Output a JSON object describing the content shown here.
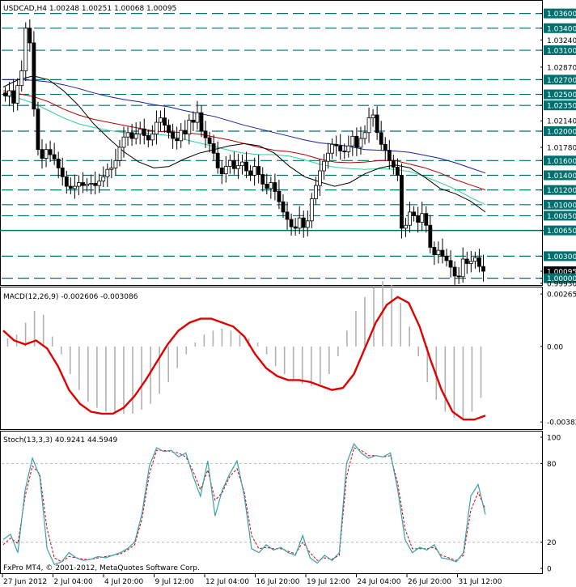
{
  "chart_data": [
    {
      "type": "candlestick",
      "title": "USDCAD,H4  1.00248 1.00251 1.00068 1.00095",
      "x_tick_labels": [
        "27 Jun 2012",
        "2 Jul 04:00",
        "4 Jul 20:00",
        "9 Jul 12:00",
        "12 Jul 04:00",
        "16 Jul 20:00",
        "19 Jul 12:00",
        "24 Jul 04:00",
        "26 Jul 20:00",
        "31 Jul 12:00"
      ],
      "y_ticks": [
        "1.03600",
        "1.03400",
        "1.03240",
        "1.03100",
        "1.02870",
        "1.02700",
        "1.02500",
        "1.02350",
        "1.02140",
        "1.02000",
        "1.01780",
        "1.01600",
        "1.01400",
        "1.01200",
        "1.01000",
        "1.00850",
        "1.00650",
        "1.00300",
        "1.00095",
        "1.00000",
        "0.99930"
      ],
      "y_tick_values": [
        1.036,
        1.034,
        1.0324,
        1.031,
        1.0287,
        1.027,
        1.025,
        1.0235,
        1.0214,
        1.02,
        1.0178,
        1.016,
        1.014,
        1.012,
        1.01,
        1.0085,
        1.0065,
        1.003,
        1.00095,
        1.0,
        0.9993
      ],
      "highlighted_ticks": [
        "1.03600",
        "1.03400",
        "1.03100",
        "1.02700",
        "1.02500",
        "1.02350",
        "1.02000",
        "1.01600",
        "1.01400",
        "1.01200",
        "1.01000",
        "1.00850",
        "1.00650",
        "1.00300",
        "1.00000"
      ],
      "ylim": [
        0.9993,
        1.0375
      ],
      "horizontal_levels": [
        1.036,
        1.034,
        1.031,
        1.027,
        1.025,
        1.0235,
        1.02,
        1.016,
        1.014,
        1.012,
        1.01,
        1.0085,
        1.003,
        1.0
      ],
      "solid_level": 1.0065,
      "current_price_label": "1.00095",
      "candles_close": [
        1.0248,
        1.0255,
        1.0238,
        1.0262,
        1.0282,
        1.034,
        1.032,
        1.023,
        1.0175,
        1.0163,
        1.0175,
        1.0168,
        1.0162,
        1.015,
        1.0138,
        1.0125,
        1.0122,
        1.0125,
        1.013,
        1.0126,
        1.0128,
        1.0129,
        1.0126,
        1.0132,
        1.0138,
        1.0148,
        1.015,
        1.016,
        1.0178,
        1.0192,
        1.0198,
        1.019,
        1.0196,
        1.0203,
        1.0194,
        1.0188,
        1.0196,
        1.0212,
        1.0218,
        1.0208,
        1.0198,
        1.019,
        1.0187,
        1.0201,
        1.0196,
        1.0215,
        1.0212,
        1.0225,
        1.02,
        1.0191,
        1.0183,
        1.017,
        1.015,
        1.0142,
        1.0152,
        1.016,
        1.0149,
        1.0153,
        1.0158,
        1.0146,
        1.014,
        1.0152,
        1.0141,
        1.0128,
        1.0122,
        1.013,
        1.0118,
        1.0104,
        1.009,
        1.008,
        1.007,
        1.0068,
        1.0082,
        1.0069,
        1.0078,
        1.0108,
        1.0126,
        1.0146,
        1.0159,
        1.017,
        1.0182,
        1.018,
        1.0173,
        1.0172,
        1.018,
        1.0193,
        1.0178,
        1.019,
        1.0198,
        1.0218,
        1.0222,
        1.0198,
        1.0182,
        1.0174,
        1.016,
        1.0151,
        1.014,
        1.0068,
        1.0072,
        1.009,
        1.0085,
        1.0076,
        1.0088,
        1.0072,
        1.0042,
        1.0032,
        1.0038,
        1.003,
        1.0024,
        1.0015,
        1.0003,
        1.0002,
        1.0026,
        1.002,
        1.0023,
        1.0028,
        1.0016,
        1.00095
      ],
      "ma_black": [
        1.026,
        1.027,
        1.0275,
        1.027,
        1.0255,
        1.0235,
        1.021,
        1.019,
        1.0172,
        1.0158,
        1.015,
        1.0152,
        1.0162,
        1.017,
        1.0175,
        1.018,
        1.0183,
        1.018,
        1.017,
        1.0152,
        1.0138,
        1.0131,
        1.0125,
        1.013,
        1.0142,
        1.015,
        1.0154,
        1.015,
        1.0137,
        1.0122,
        1.0115,
        1.0105,
        1.009
      ],
      "ma_red": [
        1.0255,
        1.0251,
        1.0247,
        1.024,
        1.023,
        1.0222,
        1.0216,
        1.0212,
        1.0208,
        1.0204,
        1.02,
        1.0199,
        1.0198,
        1.0196,
        1.0192,
        1.0188,
        1.0183,
        1.0178,
        1.0174,
        1.0172,
        1.0168,
        1.0162,
        1.0158,
        1.0157,
        1.0158,
        1.016,
        1.016,
        1.0155,
        1.015,
        1.0143,
        1.0134,
        1.0127,
        1.012
      ],
      "ma_green": [
        1.0248,
        1.0245,
        1.0238,
        1.0228,
        1.0218,
        1.021,
        1.0205,
        1.0201,
        1.0198,
        1.0197,
        1.0196,
        1.0194,
        1.0189,
        1.0184,
        1.0179,
        1.0174,
        1.017,
        1.0168,
        1.0168,
        1.0166,
        1.0161,
        1.0155,
        1.0151,
        1.0149,
        1.0148,
        1.0149,
        1.0148,
        1.0145,
        1.0138,
        1.013,
        1.0121,
        1.011,
        1.01
      ],
      "ma_blue": [
        1.027,
        1.027,
        1.0269,
        1.0267,
        1.0263,
        1.0258,
        1.0252,
        1.0247,
        1.0243,
        1.024,
        1.0236,
        1.0233,
        1.0228,
        1.0224,
        1.022,
        1.0214,
        1.0208,
        1.0203,
        1.0198,
        1.0193,
        1.0188,
        1.0184,
        1.0182,
        1.0179,
        1.0175,
        1.0174,
        1.0173,
        1.0171,
        1.0167,
        1.0163,
        1.0157,
        1.015,
        1.0143
      ]
    },
    {
      "type": "macd",
      "title": "MACD(12,26,9) -0.002606 -0.003086",
      "y_ticks": [
        "0.00265",
        "0.00",
        "-0.00382"
      ],
      "y_tick_values": [
        0.00265,
        0.0,
        -0.00382
      ],
      "ylim": [
        -0.0041,
        0.0029
      ],
      "histogram": [
        0.0004,
        0.0006,
        0.0012,
        0.0018,
        0.0016,
        0.0005,
        -0.0004,
        -0.0014,
        -0.0022,
        -0.0028,
        -0.0031,
        -0.0033,
        -0.0034,
        -0.0034,
        -0.0034,
        -0.0032,
        -0.0029,
        -0.0024,
        -0.0018,
        -0.0011,
        -0.0004,
        0.0002,
        0.0006,
        0.0008,
        0.0009,
        0.0008,
        0.0006,
        0.0004,
        0.0002,
        -0.0004,
        -0.001,
        -0.0014,
        -0.0017,
        -0.0019,
        -0.002,
        -0.0019,
        -0.0014,
        -0.0005,
        0.0008,
        0.0018,
        0.0025,
        0.003,
        0.0033,
        0.0031,
        0.0022,
        0.001,
        -0.0005,
        -0.0018,
        -0.0027,
        -0.0033,
        -0.0036,
        -0.0037,
        -0.0033,
        -0.0026
      ],
      "signal": [
        0.0008,
        0.0003,
        0.0001,
        0.0003,
        -0.0001,
        -0.001,
        -0.0022,
        -0.0029,
        -0.0033,
        -0.0034,
        -0.0034,
        -0.0031,
        -0.0025,
        -0.0017,
        -0.0008,
        0.0001,
        0.0008,
        0.0012,
        0.0014,
        0.0014,
        0.0012,
        0.001,
        0.0005,
        -0.0004,
        -0.0011,
        -0.0015,
        -0.0017,
        -0.0017,
        -0.0018,
        -0.002,
        -0.0022,
        -0.0021,
        -0.0014,
        -0.0001,
        0.0012,
        0.0021,
        0.0025,
        0.0022,
        0.001,
        -0.0007,
        -0.0022,
        -0.0033,
        -0.0037,
        -0.0037,
        -0.0035
      ]
    },
    {
      "type": "stochastic",
      "title": "Stoch(13,3,3) 40.9241 44.5949",
      "y_ticks": [
        "100",
        "80",
        "20",
        "0"
      ],
      "y_tick_values": [
        100,
        80,
        20,
        0
      ],
      "ylim": [
        0,
        100
      ],
      "main": [
        22,
        26,
        12,
        60,
        84,
        70,
        15,
        3,
        5,
        12,
        8,
        6,
        7,
        9,
        8,
        10,
        12,
        15,
        20,
        42,
        78,
        92,
        89,
        90,
        85,
        88,
        70,
        55,
        82,
        40,
        60,
        72,
        82,
        55,
        15,
        12,
        18,
        14,
        16,
        12,
        10,
        25,
        8,
        4,
        10,
        6,
        12,
        80,
        95,
        88,
        84,
        86,
        85,
        88,
        60,
        22,
        12,
        16,
        14,
        18,
        8,
        7,
        5,
        12,
        55,
        64,
        41
      ],
      "signal": [
        18,
        23,
        19,
        55,
        78,
        72,
        30,
        8,
        5,
        9,
        8,
        7,
        7,
        8,
        9,
        10,
        11,
        14,
        18,
        38,
        72,
        90,
        90,
        89,
        88,
        85,
        74,
        60,
        75,
        52,
        58,
        70,
        76,
        58,
        25,
        15,
        16,
        15,
        15,
        13,
        11,
        20,
        12,
        6,
        8,
        7,
        10,
        70,
        92,
        90,
        86,
        86,
        85,
        86,
        65,
        30,
        15,
        15,
        15,
        16,
        10,
        8,
        6,
        10,
        44,
        58,
        45
      ],
      "title_footer": "FxPro MT4, © 2001-2012, MetaQuotes Software Corp."
    }
  ],
  "colors": {
    "candle": "#000000",
    "level_line": "#00706f",
    "ma_black": "#000000",
    "ma_red": "#b50000",
    "ma_green": "#33cc99",
    "ma_blue": "#1c1c9e",
    "macd_hist": "#b0b0b0",
    "macd_signal": "#e00000",
    "stoch_main": "#3aa0a8",
    "stoch_signal": "#cc0000",
    "tick_box": "#00706f"
  }
}
